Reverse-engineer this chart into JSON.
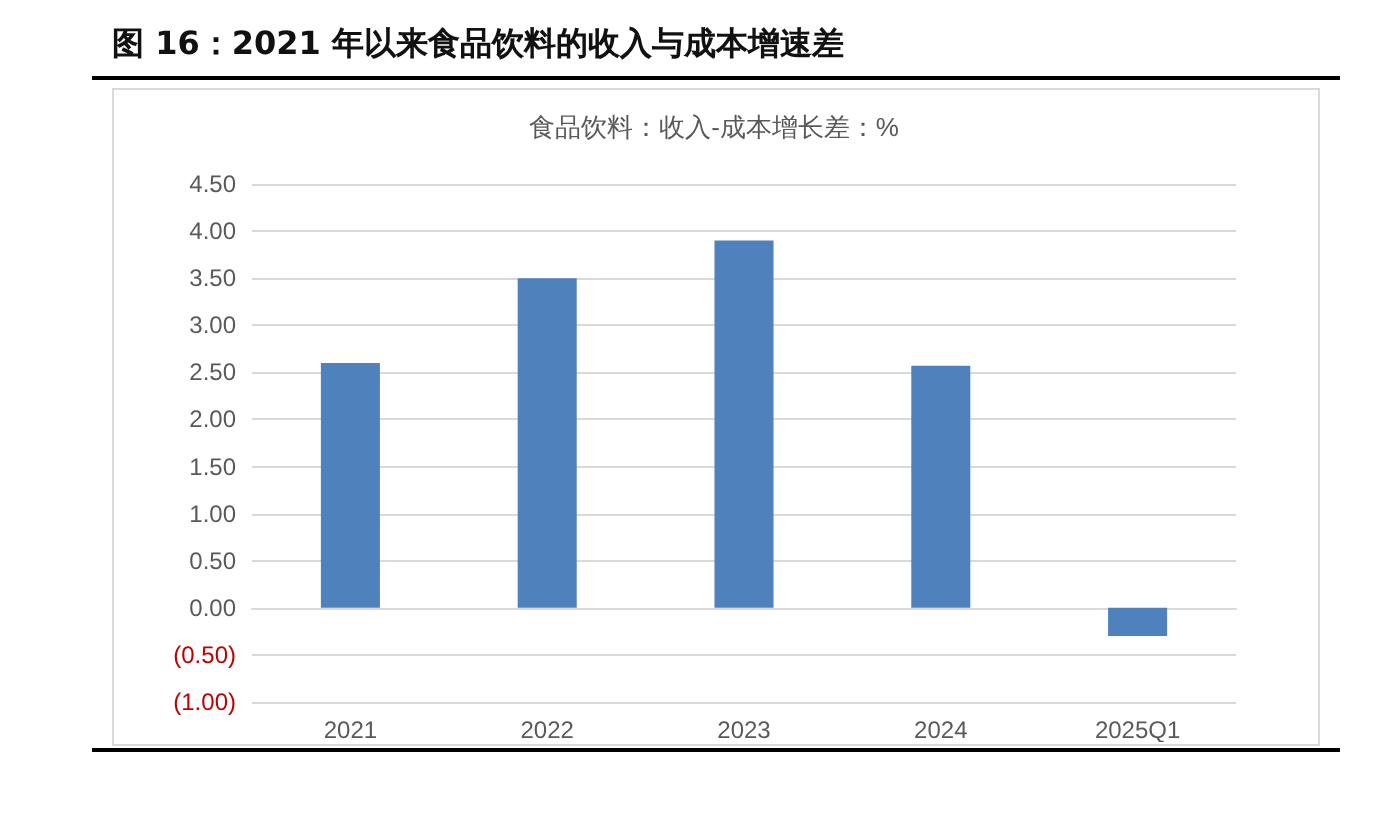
{
  "chart_data": {
    "type": "bar",
    "title": "图 16：2021 年以来食品饮料的收入与成本增速差",
    "subtitle": "食品饮料：收入-成本增长差：%",
    "categories": [
      "2021",
      "2022",
      "2023",
      "2024",
      "2025Q1"
    ],
    "values": [
      2.6,
      3.5,
      3.9,
      2.57,
      -0.3
    ],
    "color": "#4f81bd",
    "ylim": [
      -1,
      4.5
    ],
    "yticks": [
      {
        "value": -1,
        "label": "(1.00)"
      },
      {
        "value": -0.5,
        "label": "(0.50)"
      },
      {
        "value": 0,
        "label": "0.00"
      },
      {
        "value": 0.5,
        "label": "0.50"
      },
      {
        "value": 1,
        "label": "1.00"
      },
      {
        "value": 1.5,
        "label": "1.50"
      },
      {
        "value": 2,
        "label": "2.00"
      },
      {
        "value": 2.5,
        "label": "2.50"
      },
      {
        "value": 3,
        "label": "3.00"
      },
      {
        "value": 3.5,
        "label": "3.50"
      },
      {
        "value": 4,
        "label": "4.00"
      },
      {
        "value": 4.5,
        "label": "4.50"
      }
    ],
    "grid": "y"
  }
}
